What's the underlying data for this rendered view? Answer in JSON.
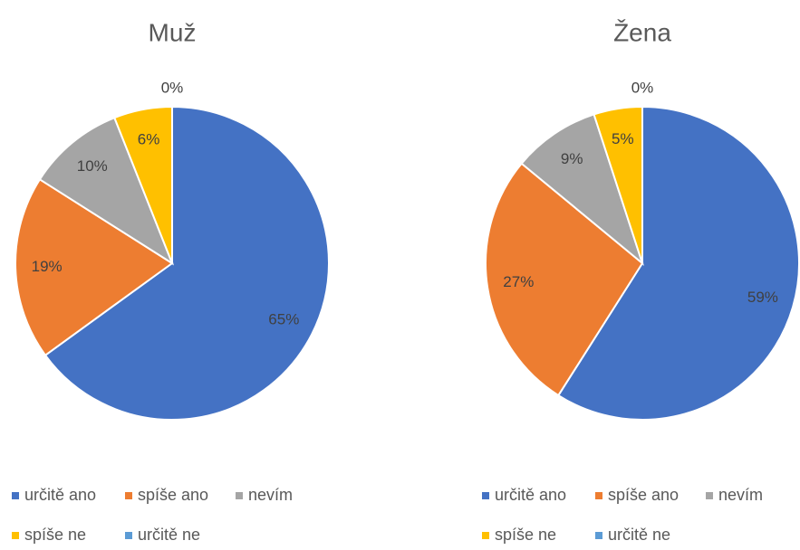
{
  "chart_data": [
    {
      "type": "pie",
      "title": "Muž",
      "categories": [
        "určitě ano",
        "spíše ano",
        "nevím",
        "spíše ne",
        "určitě ne"
      ],
      "values": [
        65,
        19,
        10,
        6,
        0
      ],
      "value_labels": [
        "65%",
        "19%",
        "10%",
        "6%",
        "0%"
      ],
      "colors": [
        "#4472c4",
        "#ed7d31",
        "#a5a5a5",
        "#ffc000",
        "#5b9bd5"
      ],
      "legend": "bottom"
    },
    {
      "type": "pie",
      "title": "Žena",
      "categories": [
        "určitě ano",
        "spíše ano",
        "nevím",
        "spíše ne",
        "určitě ne"
      ],
      "values": [
        59,
        27,
        9,
        5,
        0
      ],
      "value_labels": [
        "59%",
        "27%",
        "9%",
        "5%",
        "0%"
      ],
      "colors": [
        "#4472c4",
        "#ed7d31",
        "#a5a5a5",
        "#ffc000",
        "#5b9bd5"
      ],
      "legend": "bottom"
    }
  ]
}
